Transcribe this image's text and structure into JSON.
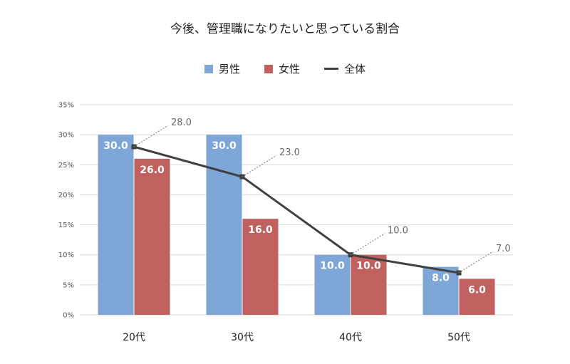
{
  "chart_data": {
    "type": "bar",
    "title": "今後、管理職になりたいと思っている割合",
    "categories": [
      "20代",
      "30代",
      "40代",
      "50代"
    ],
    "series": [
      {
        "name": "男性",
        "type": "bar",
        "color": "#7ea6d6",
        "values": [
          30.0,
          30.0,
          10.0,
          8.0
        ],
        "labels": [
          "30.0",
          "30.0",
          "10.0",
          "8.0"
        ]
      },
      {
        "name": "女性",
        "type": "bar",
        "color": "#c0605f",
        "values": [
          26.0,
          16.0,
          10.0,
          6.0
        ],
        "labels": [
          "26.0",
          "16.0",
          "10.0",
          "6.0"
        ]
      },
      {
        "name": "全体",
        "type": "line",
        "color": "#404040",
        "values": [
          28.0,
          23.0,
          10.0,
          7.0
        ],
        "labels": [
          "28.0",
          "23.0",
          "10.0",
          "7.0"
        ]
      }
    ],
    "ylim": [
      0,
      35
    ],
    "yticks": [
      "0%",
      "5%",
      "10%",
      "15%",
      "20%",
      "25%",
      "30%",
      "35%"
    ],
    "grid": true,
    "legend": "top"
  }
}
